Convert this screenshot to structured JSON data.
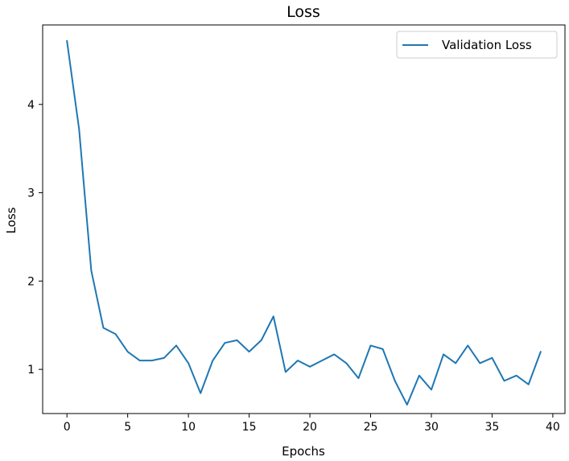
{
  "chart_data": {
    "type": "line",
    "title": "Loss",
    "xlabel": "Epochs",
    "ylabel": "Loss",
    "xlim": [
      -2,
      41
    ],
    "ylim": [
      0.5,
      4.9
    ],
    "xticks": [
      0,
      5,
      10,
      15,
      20,
      25,
      30,
      35,
      40
    ],
    "yticks": [
      1,
      2,
      3,
      4
    ],
    "grid": false,
    "legend_position": "top-right",
    "x": [
      0,
      1,
      2,
      3,
      4,
      5,
      6,
      7,
      8,
      9,
      10,
      11,
      12,
      13,
      14,
      15,
      16,
      17,
      18,
      19,
      20,
      21,
      22,
      23,
      24,
      25,
      26,
      27,
      28,
      29,
      30,
      31,
      32,
      33,
      34,
      35,
      36,
      37,
      38,
      39
    ],
    "series": [
      {
        "name": "Validation Loss",
        "color": "#1f77b4",
        "values": [
          4.72,
          3.72,
          2.12,
          1.47,
          1.4,
          1.2,
          1.1,
          1.1,
          1.13,
          1.27,
          1.07,
          0.73,
          1.1,
          1.3,
          1.33,
          1.2,
          1.33,
          1.6,
          0.97,
          1.1,
          1.03,
          1.1,
          1.17,
          1.07,
          0.9,
          1.27,
          1.23,
          0.87,
          0.6,
          0.93,
          0.77,
          1.17,
          1.07,
          1.27,
          1.07,
          1.13,
          0.87,
          0.93,
          0.83,
          1.2
        ]
      }
    ]
  }
}
